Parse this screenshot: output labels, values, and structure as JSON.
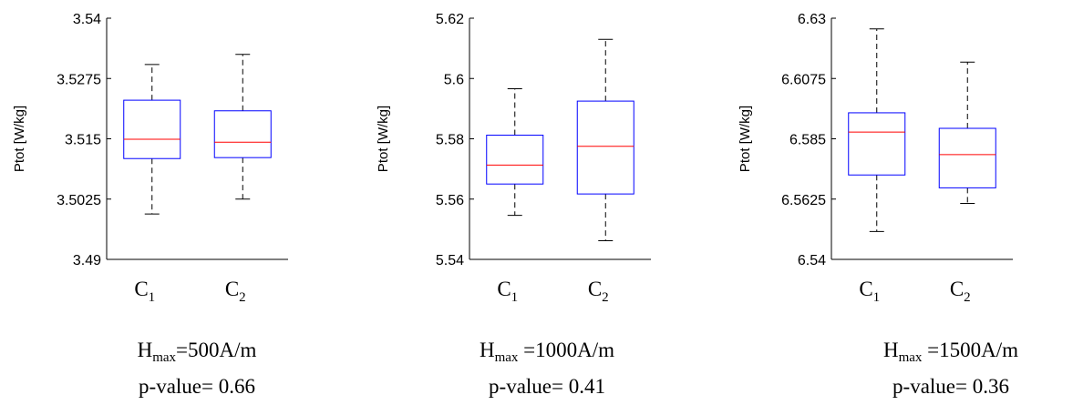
{
  "chart_data": [
    {
      "type": "box",
      "ylabel": "Ptot [W/kg]",
      "ylim": [
        3.49,
        3.54
      ],
      "yticks": [
        "3.49",
        "3.5025",
        "3.515",
        "3.5275",
        "3.54"
      ],
      "categories": [
        {
          "base": "C",
          "sub": "1"
        },
        {
          "base": "C",
          "sub": "2"
        }
      ],
      "boxes": [
        {
          "whisker_low": 3.4994,
          "q1": 3.5109,
          "median": 3.5149,
          "q3": 3.523,
          "whisker_high": 3.5304
        },
        {
          "whisker_low": 3.5025,
          "q1": 3.5111,
          "median": 3.5143,
          "q3": 3.5208,
          "whisker_high": 3.5325
        }
      ],
      "caption_line1_main": "H",
      "caption_line1_sub": "max",
      "caption_line1_rest": "=500A/m",
      "caption_line2": "p-value= 0.66"
    },
    {
      "type": "box",
      "ylabel": "Ptot [W/kg]",
      "ylim": [
        5.54,
        5.62
      ],
      "yticks": [
        "5.54",
        "5.56",
        "5.58",
        "5.6",
        "5.62"
      ],
      "categories": [
        {
          "base": "C",
          "sub": "1"
        },
        {
          "base": "C",
          "sub": "2"
        }
      ],
      "boxes": [
        {
          "whisker_low": 5.5546,
          "q1": 5.565,
          "median": 5.5713,
          "q3": 5.5812,
          "whisker_high": 5.5966
        },
        {
          "whisker_low": 5.5462,
          "q1": 5.5617,
          "median": 5.5775,
          "q3": 5.5925,
          "whisker_high": 5.613
        }
      ],
      "caption_line1_main": "H",
      "caption_line1_sub": "max",
      "caption_line1_rest": " =1000A/m",
      "caption_line2": "p-value= 0.41"
    },
    {
      "type": "box",
      "ylabel": "Ptot [W/kg]",
      "ylim": [
        6.54,
        6.63
      ],
      "yticks": [
        "6.54",
        "6.5625",
        "6.585",
        "6.6075",
        "6.63"
      ],
      "categories": [
        {
          "base": "C",
          "sub": "1"
        },
        {
          "base": "C",
          "sub": "2"
        }
      ],
      "boxes": [
        {
          "whisker_low": 6.5504,
          "q1": 6.5715,
          "median": 6.5875,
          "q3": 6.5947,
          "whisker_high": 6.626
        },
        {
          "whisker_low": 6.5609,
          "q1": 6.5667,
          "median": 6.5791,
          "q3": 6.5889,
          "whisker_high": 6.6136
        }
      ],
      "caption_line1_main": "H",
      "caption_line1_sub": "max",
      "caption_line1_rest": " =1500A/m",
      "caption_line2": "p-value= 0.36"
    }
  ],
  "colors": {
    "box": "#0000ff",
    "median": "#ff0000",
    "whisker": "#000000",
    "axis": "#000000"
  }
}
